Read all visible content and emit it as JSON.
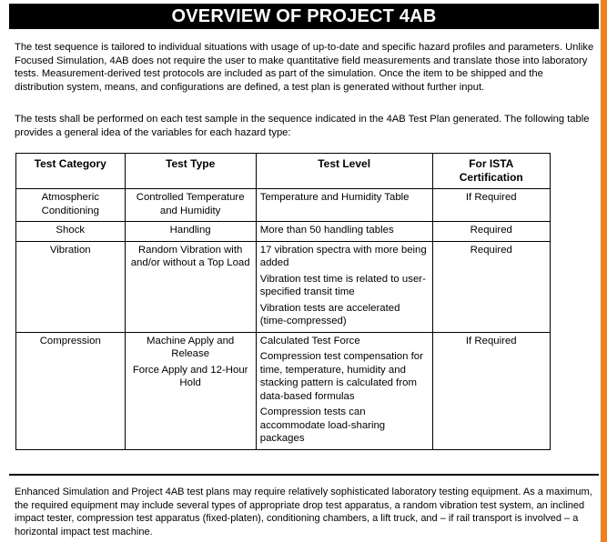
{
  "title": "OVERVIEW OF PROJECT 4AB",
  "paragraphs": {
    "intro": "The test sequence is tailored to individual situations with usage of up-to-date and specific hazard profiles and parameters.  Unlike Focused Simulation, 4AB does not require the user to make quantitative field measurements and translate those into laboratory tests.  Measurement-derived test protocols are included as part of the simulation.  Once the item to be shipped and the distribution system, means, and configurations are defined, a test plan is generated without further input.",
    "tests": "The tests shall be performed on each test sample in the sequence indicated in the 4AB Test Plan generated. The following table provides a general idea of the variables for each hazard type:",
    "equipment": "Enhanced Simulation and Project 4AB test plans may require relatively sophisticated laboratory testing equipment.  As a maximum, the required equipment may include several types of appropriate drop test apparatus, a random vibration test system, an inclined impact tester, compression test apparatus (fixed-platen), conditioning chambers, a lift truck, and – if rail transport is involved – a horizontal impact test machine."
  },
  "table": {
    "headers": [
      "Test Category",
      "Test Type",
      "Test Level",
      "For ISTA Certification"
    ],
    "rows": [
      {
        "category": "Atmospheric Conditioning",
        "type": [
          "Controlled Temperature and Humidity"
        ],
        "level": [
          "Temperature and Humidity Table"
        ],
        "cert": "If Required"
      },
      {
        "category": "Shock",
        "type": [
          "Handling"
        ],
        "level": [
          "More than 50 handling tables"
        ],
        "cert": "Required"
      },
      {
        "category": "Vibration",
        "type": [
          "Random Vibration with and/or without a Top Load"
        ],
        "level": [
          "17 vibration spectra with more being added",
          "Vibration test time is related to user-specified transit time",
          "Vibration tests are accelerated (time-compressed)"
        ],
        "cert": "Required"
      },
      {
        "category": "Compression",
        "type": [
          "Machine Apply and Release",
          "Force Apply and 12-Hour Hold"
        ],
        "level": [
          "Calculated Test Force",
          "Compression test compensation for time, temperature, humidity and stacking pattern is calculated from data-based formulas",
          "Compression tests can accommodate load-sharing packages"
        ],
        "cert": "If Required"
      }
    ]
  },
  "colors": {
    "accent_bar": "#f07f1d",
    "title_bg": "#000000",
    "title_text": "#ffffff"
  }
}
